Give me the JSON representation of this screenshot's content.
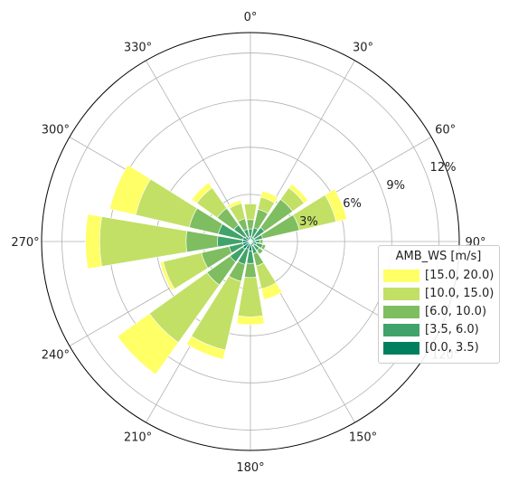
{
  "chart_data": {
    "type": "windrose",
    "direction_ticks": [
      "0°",
      "30°",
      "60°",
      "90°",
      "120°",
      "150°",
      "180°",
      "210°",
      "240°",
      "270°",
      "300°",
      "330°"
    ],
    "radial_ticks": [
      "3%",
      "6%",
      "9%",
      "12%"
    ],
    "radial_tick_values": [
      3,
      6,
      9,
      12
    ],
    "rmax": 13.3,
    "directions_deg": [
      0,
      22.5,
      45,
      67.5,
      90,
      112.5,
      135,
      157.5,
      180,
      202.5,
      225,
      247.5,
      270,
      292.5,
      315,
      337.5
    ],
    "legend": {
      "title": "AMB_WS [m/s]",
      "placement": "right"
    },
    "series": [
      {
        "name": "[0.0, 3.5)",
        "color": "#007f5f",
        "values": [
          0.3,
          0.3,
          0.3,
          0.3,
          0.3,
          0.4,
          0.3,
          0.3,
          0.6,
          0.5,
          0.6,
          0.5,
          0.5,
          0.5,
          0.4,
          0.3
        ]
      },
      {
        "name": "[3.5, 6.0)",
        "color": "#40a36a",
        "values": [
          0.5,
          0.6,
          0.8,
          0.5,
          0.3,
          0.4,
          0.4,
          0.5,
          0.8,
          1.0,
          1.0,
          0.9,
          1.6,
          1.6,
          0.9,
          0.5
        ]
      },
      {
        "name": "[6.0, 10.0)",
        "color": "#7ebd60",
        "values": [
          0.6,
          1.2,
          2.2,
          2.4,
          0.2,
          0.2,
          0.3,
          0.8,
          0.9,
          1.1,
          1.8,
          1.8,
          2.0,
          1.9,
          1.3,
          0.7
        ]
      },
      {
        "name": "[10.0, 15.0)",
        "color": "#c2e065",
        "values": [
          1.0,
          0.8,
          0.9,
          2.4,
          0.0,
          0.0,
          0.0,
          1.5,
          2.5,
          4.5,
          4.5,
          2.5,
          5.5,
          3.5,
          1.6,
          1.0
        ]
      },
      {
        "name": "[15.0, 20.0)",
        "color": "#ffff66",
        "values": [
          0.0,
          0.4,
          0.3,
          0.7,
          0.0,
          0.0,
          0.0,
          0.7,
          0.5,
          0.6,
          2.5,
          0.2,
          0.9,
          1.7,
          0.4,
          0.2
        ]
      }
    ]
  }
}
